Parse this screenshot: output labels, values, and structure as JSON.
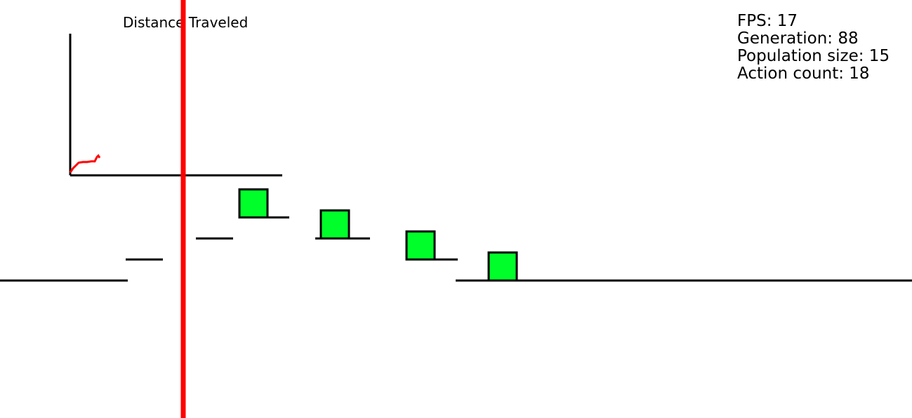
{
  "graph": {
    "title": "Distance Traveled",
    "line_color": "#ff0000",
    "axis_color": "#000000"
  },
  "hud": {
    "fps_label": "FPS: 17",
    "generation_label": "Generation: 88",
    "population_label": "Population size: 15",
    "action_count_label": "Action count: 18"
  },
  "colors": {
    "background": "#ffffff",
    "platform": "#000000",
    "agent_fill": "#00ff2a",
    "agent_stroke": "#000000",
    "marker": "#ff0000"
  }
}
